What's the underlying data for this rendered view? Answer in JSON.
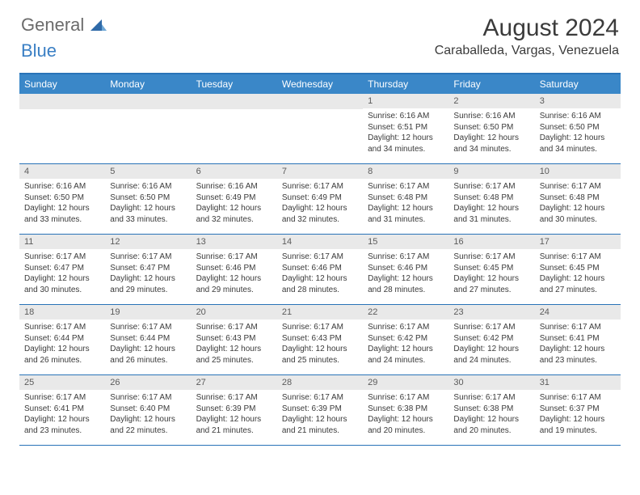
{
  "logo": {
    "general": "General",
    "blue": "Blue"
  },
  "header": {
    "month_title": "August 2024",
    "location": "Caraballeda, Vargas, Venezuela"
  },
  "styling": {
    "header_bg": "#3a87c8",
    "border_color": "#2973b8",
    "daynum_bg": "#e9e9e9",
    "text_color": "#3a3a3a",
    "logo_gray": "#6b6b6b",
    "logo_blue": "#3a7fc4",
    "dayname_fontsize": 12,
    "body_fontsize": 10,
    "title_fontsize": 30,
    "location_fontsize": 16
  },
  "daynames": [
    "Sunday",
    "Monday",
    "Tuesday",
    "Wednesday",
    "Thursday",
    "Friday",
    "Saturday"
  ],
  "weeks": [
    [
      {
        "day": "",
        "sunrise": "",
        "sunset": "",
        "daylight": ""
      },
      {
        "day": "",
        "sunrise": "",
        "sunset": "",
        "daylight": ""
      },
      {
        "day": "",
        "sunrise": "",
        "sunset": "",
        "daylight": ""
      },
      {
        "day": "",
        "sunrise": "",
        "sunset": "",
        "daylight": ""
      },
      {
        "day": "1",
        "sunrise": "Sunrise: 6:16 AM",
        "sunset": "Sunset: 6:51 PM",
        "daylight": "Daylight: 12 hours and 34 minutes."
      },
      {
        "day": "2",
        "sunrise": "Sunrise: 6:16 AM",
        "sunset": "Sunset: 6:50 PM",
        "daylight": "Daylight: 12 hours and 34 minutes."
      },
      {
        "day": "3",
        "sunrise": "Sunrise: 6:16 AM",
        "sunset": "Sunset: 6:50 PM",
        "daylight": "Daylight: 12 hours and 34 minutes."
      }
    ],
    [
      {
        "day": "4",
        "sunrise": "Sunrise: 6:16 AM",
        "sunset": "Sunset: 6:50 PM",
        "daylight": "Daylight: 12 hours and 33 minutes."
      },
      {
        "day": "5",
        "sunrise": "Sunrise: 6:16 AM",
        "sunset": "Sunset: 6:50 PM",
        "daylight": "Daylight: 12 hours and 33 minutes."
      },
      {
        "day": "6",
        "sunrise": "Sunrise: 6:16 AM",
        "sunset": "Sunset: 6:49 PM",
        "daylight": "Daylight: 12 hours and 32 minutes."
      },
      {
        "day": "7",
        "sunrise": "Sunrise: 6:17 AM",
        "sunset": "Sunset: 6:49 PM",
        "daylight": "Daylight: 12 hours and 32 minutes."
      },
      {
        "day": "8",
        "sunrise": "Sunrise: 6:17 AM",
        "sunset": "Sunset: 6:48 PM",
        "daylight": "Daylight: 12 hours and 31 minutes."
      },
      {
        "day": "9",
        "sunrise": "Sunrise: 6:17 AM",
        "sunset": "Sunset: 6:48 PM",
        "daylight": "Daylight: 12 hours and 31 minutes."
      },
      {
        "day": "10",
        "sunrise": "Sunrise: 6:17 AM",
        "sunset": "Sunset: 6:48 PM",
        "daylight": "Daylight: 12 hours and 30 minutes."
      }
    ],
    [
      {
        "day": "11",
        "sunrise": "Sunrise: 6:17 AM",
        "sunset": "Sunset: 6:47 PM",
        "daylight": "Daylight: 12 hours and 30 minutes."
      },
      {
        "day": "12",
        "sunrise": "Sunrise: 6:17 AM",
        "sunset": "Sunset: 6:47 PM",
        "daylight": "Daylight: 12 hours and 29 minutes."
      },
      {
        "day": "13",
        "sunrise": "Sunrise: 6:17 AM",
        "sunset": "Sunset: 6:46 PM",
        "daylight": "Daylight: 12 hours and 29 minutes."
      },
      {
        "day": "14",
        "sunrise": "Sunrise: 6:17 AM",
        "sunset": "Sunset: 6:46 PM",
        "daylight": "Daylight: 12 hours and 28 minutes."
      },
      {
        "day": "15",
        "sunrise": "Sunrise: 6:17 AM",
        "sunset": "Sunset: 6:46 PM",
        "daylight": "Daylight: 12 hours and 28 minutes."
      },
      {
        "day": "16",
        "sunrise": "Sunrise: 6:17 AM",
        "sunset": "Sunset: 6:45 PM",
        "daylight": "Daylight: 12 hours and 27 minutes."
      },
      {
        "day": "17",
        "sunrise": "Sunrise: 6:17 AM",
        "sunset": "Sunset: 6:45 PM",
        "daylight": "Daylight: 12 hours and 27 minutes."
      }
    ],
    [
      {
        "day": "18",
        "sunrise": "Sunrise: 6:17 AM",
        "sunset": "Sunset: 6:44 PM",
        "daylight": "Daylight: 12 hours and 26 minutes."
      },
      {
        "day": "19",
        "sunrise": "Sunrise: 6:17 AM",
        "sunset": "Sunset: 6:44 PM",
        "daylight": "Daylight: 12 hours and 26 minutes."
      },
      {
        "day": "20",
        "sunrise": "Sunrise: 6:17 AM",
        "sunset": "Sunset: 6:43 PM",
        "daylight": "Daylight: 12 hours and 25 minutes."
      },
      {
        "day": "21",
        "sunrise": "Sunrise: 6:17 AM",
        "sunset": "Sunset: 6:43 PM",
        "daylight": "Daylight: 12 hours and 25 minutes."
      },
      {
        "day": "22",
        "sunrise": "Sunrise: 6:17 AM",
        "sunset": "Sunset: 6:42 PM",
        "daylight": "Daylight: 12 hours and 24 minutes."
      },
      {
        "day": "23",
        "sunrise": "Sunrise: 6:17 AM",
        "sunset": "Sunset: 6:42 PM",
        "daylight": "Daylight: 12 hours and 24 minutes."
      },
      {
        "day": "24",
        "sunrise": "Sunrise: 6:17 AM",
        "sunset": "Sunset: 6:41 PM",
        "daylight": "Daylight: 12 hours and 23 minutes."
      }
    ],
    [
      {
        "day": "25",
        "sunrise": "Sunrise: 6:17 AM",
        "sunset": "Sunset: 6:41 PM",
        "daylight": "Daylight: 12 hours and 23 minutes."
      },
      {
        "day": "26",
        "sunrise": "Sunrise: 6:17 AM",
        "sunset": "Sunset: 6:40 PM",
        "daylight": "Daylight: 12 hours and 22 minutes."
      },
      {
        "day": "27",
        "sunrise": "Sunrise: 6:17 AM",
        "sunset": "Sunset: 6:39 PM",
        "daylight": "Daylight: 12 hours and 21 minutes."
      },
      {
        "day": "28",
        "sunrise": "Sunrise: 6:17 AM",
        "sunset": "Sunset: 6:39 PM",
        "daylight": "Daylight: 12 hours and 21 minutes."
      },
      {
        "day": "29",
        "sunrise": "Sunrise: 6:17 AM",
        "sunset": "Sunset: 6:38 PM",
        "daylight": "Daylight: 12 hours and 20 minutes."
      },
      {
        "day": "30",
        "sunrise": "Sunrise: 6:17 AM",
        "sunset": "Sunset: 6:38 PM",
        "daylight": "Daylight: 12 hours and 20 minutes."
      },
      {
        "day": "31",
        "sunrise": "Sunrise: 6:17 AM",
        "sunset": "Sunset: 6:37 PM",
        "daylight": "Daylight: 12 hours and 19 minutes."
      }
    ]
  ]
}
